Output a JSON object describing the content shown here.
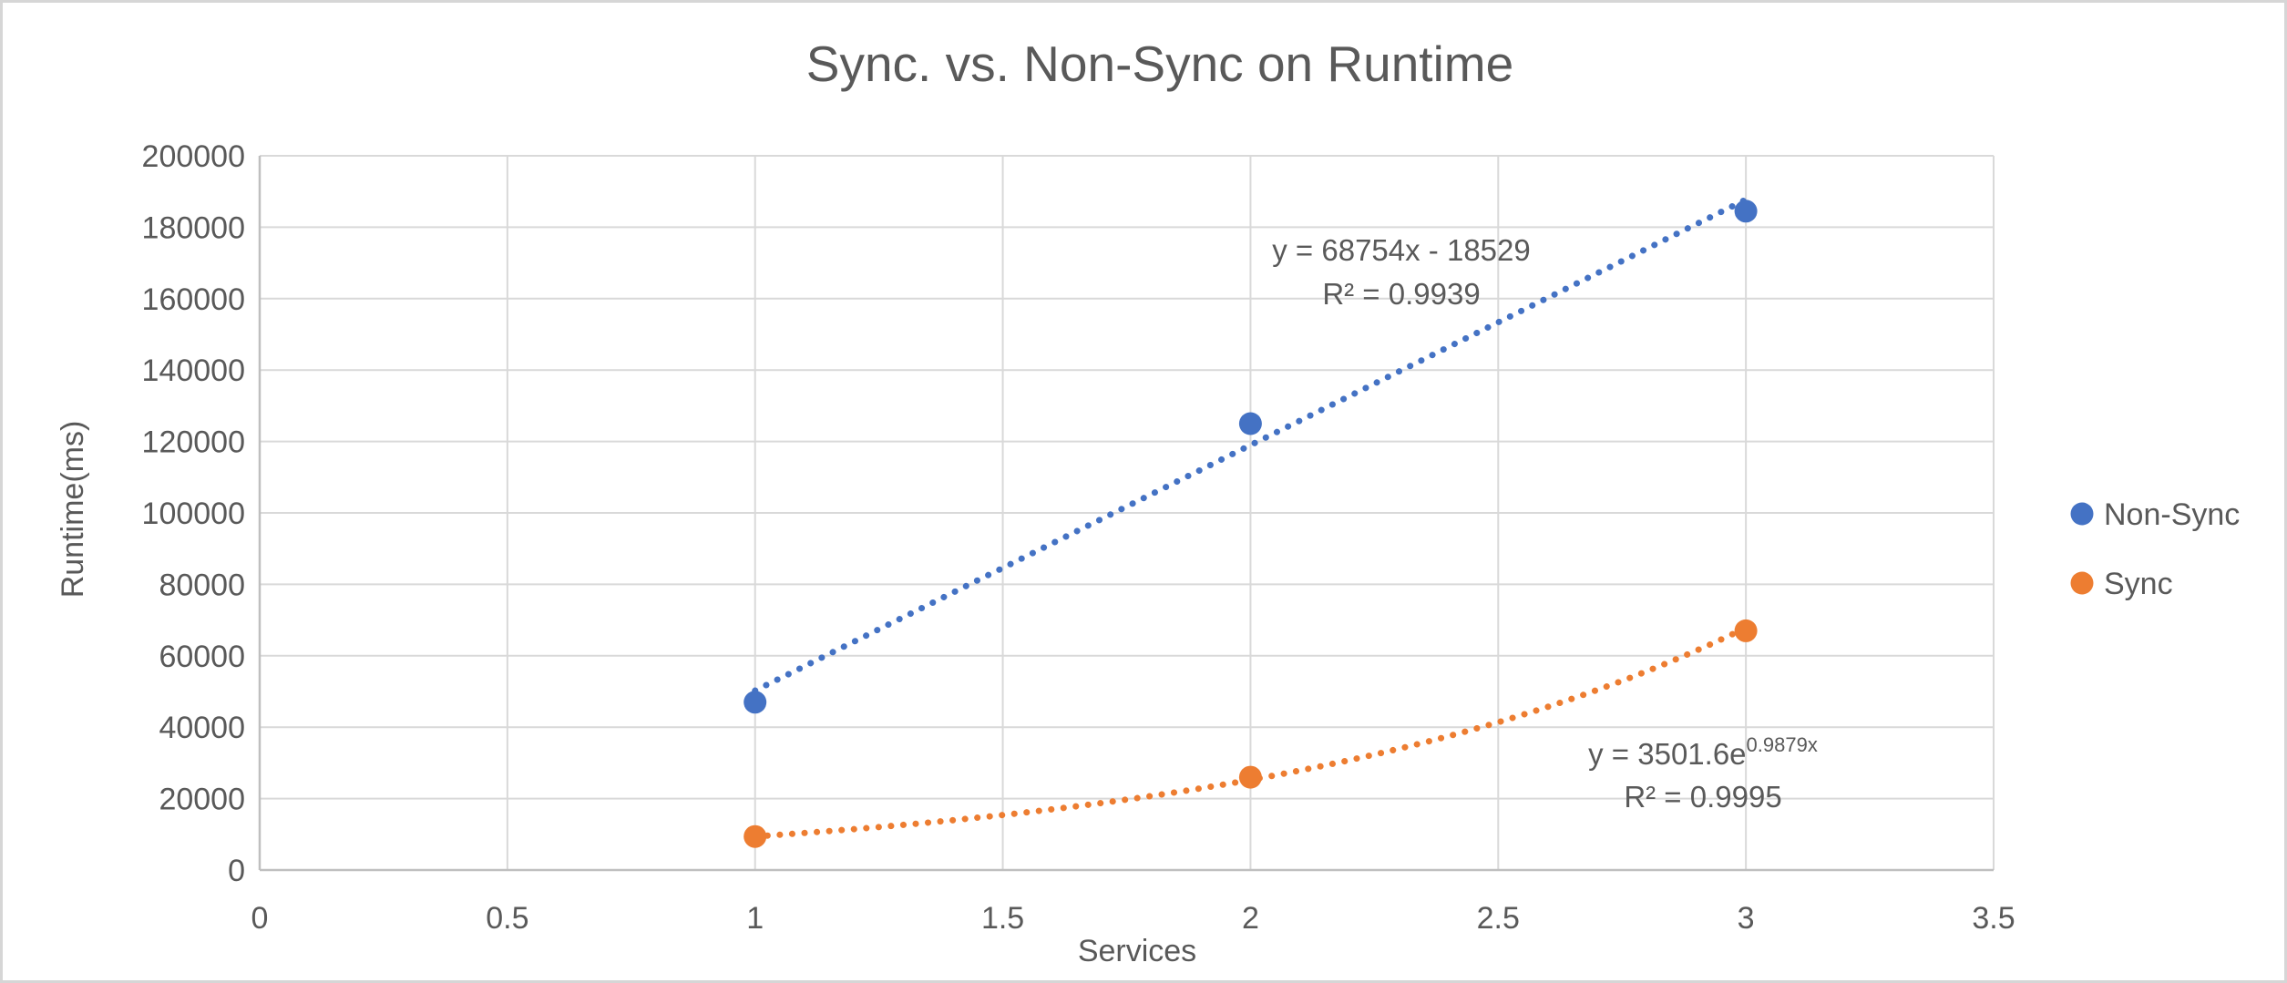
{
  "window": {
    "background": "#FFFFFF",
    "border_color": "#D6D6D6"
  },
  "theme": {
    "text_color": "#595959",
    "gridline_color": "#D9D9D9",
    "axis_line_color": "#BFBFBF"
  },
  "chart_data": {
    "type": "scatter",
    "title": "Sync. vs. Non-Sync on  Runtime",
    "xlabel": "Services",
    "ylabel": "Runtime(ms)",
    "xlim": [
      0,
      3.5
    ],
    "ylim": [
      0,
      200000
    ],
    "x_ticks": [
      "0",
      "0.5",
      "1",
      "1.5",
      "2",
      "2.5",
      "3",
      "3.5"
    ],
    "y_ticks": [
      "0",
      "20000",
      "40000",
      "60000",
      "80000",
      "100000",
      "120000",
      "140000",
      "160000",
      "180000",
      "200000"
    ],
    "grid": true,
    "legend_position": "right-middle",
    "marker_style": "filled-circle",
    "trendline_style": "dotted",
    "series": [
      {
        "name": "Non-Sync",
        "color": "#4472C4",
        "points": [
          {
            "x": 1,
            "y": 47000
          },
          {
            "x": 2,
            "y": 125000
          },
          {
            "x": 3,
            "y": 184500
          }
        ],
        "trendline": {
          "type": "linear",
          "slope": 68754,
          "intercept": -18529,
          "x_range": [
            1,
            3
          ],
          "equation": "y = 68754x - 18529",
          "r_squared": "R² = 0.9939"
        }
      },
      {
        "name": "Sync",
        "color": "#ED7D31",
        "points": [
          {
            "x": 1,
            "y": 9400
          },
          {
            "x": 2,
            "y": 26000
          },
          {
            "x": 3,
            "y": 67000
          }
        ],
        "trendline": {
          "type": "exponential",
          "coefficient": 3501.6,
          "exponent_coefficient": 0.9879,
          "x_range": [
            1,
            3
          ],
          "equation_base": "y = 3501.6e",
          "equation_exponent": "0.9879x",
          "r_squared": "R² = 0.9995"
        }
      }
    ]
  },
  "legend": {
    "items": [
      {
        "label": "Non-Sync",
        "color": "#4472C4"
      },
      {
        "label": "Sync",
        "color": "#ED7D31"
      }
    ]
  }
}
